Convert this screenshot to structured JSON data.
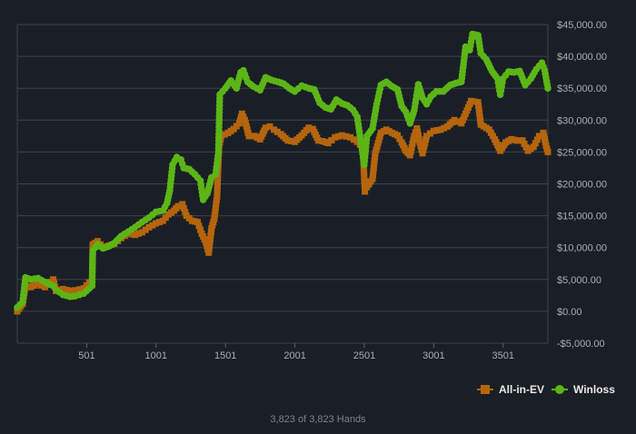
{
  "chart_data": {
    "type": "line",
    "xlim": [
      1,
      3823
    ],
    "ylim": [
      -5000,
      45000
    ],
    "x_ticks": [
      501,
      1001,
      1501,
      2001,
      2501,
      3001,
      3501
    ],
    "x_tick_labels": [
      "501",
      "1001",
      "1501",
      "2001",
      "2501",
      "3001",
      "3501"
    ],
    "y_ticks": [
      -5000,
      0,
      5000,
      10000,
      15000,
      20000,
      25000,
      30000,
      35000,
      40000,
      45000
    ],
    "y_tick_labels": [
      "-$5,000.00",
      "$0.00",
      "$5,000.00",
      "$10,000.00",
      "$15,000.00",
      "$20,000.00",
      "$25,000.00",
      "$30,000.00",
      "$35,000.00",
      "$40,000.00",
      "$45,000.00"
    ],
    "grid": true,
    "legend_position": "bottom-right",
    "series": [
      {
        "name": "All-in-EV",
        "color": "#b5650d",
        "marker": "square",
        "points": [
          [
            1,
            0
          ],
          [
            40,
            1200
          ],
          [
            60,
            4000
          ],
          [
            100,
            3800
          ],
          [
            150,
            4300
          ],
          [
            200,
            3800
          ],
          [
            260,
            5000
          ],
          [
            280,
            3200
          ],
          [
            330,
            3500
          ],
          [
            380,
            3200
          ],
          [
            420,
            3300
          ],
          [
            480,
            3600
          ],
          [
            540,
            5000
          ],
          [
            545,
            10500
          ],
          [
            580,
            11000
          ],
          [
            620,
            10000
          ],
          [
            660,
            10300
          ],
          [
            700,
            10600
          ],
          [
            750,
            11500
          ],
          [
            800,
            12200
          ],
          [
            850,
            12000
          ],
          [
            900,
            12400
          ],
          [
            950,
            13200
          ],
          [
            1000,
            13800
          ],
          [
            1050,
            14200
          ],
          [
            1090,
            15200
          ],
          [
            1130,
            15800
          ],
          [
            1160,
            16500
          ],
          [
            1190,
            16800
          ],
          [
            1220,
            15000
          ],
          [
            1260,
            14200
          ],
          [
            1300,
            14000
          ],
          [
            1330,
            12200
          ],
          [
            1360,
            10800
          ],
          [
            1380,
            9200
          ],
          [
            1400,
            13000
          ],
          [
            1420,
            14500
          ],
          [
            1440,
            18000
          ],
          [
            1455,
            26000
          ],
          [
            1470,
            27500
          ],
          [
            1520,
            28000
          ],
          [
            1560,
            28600
          ],
          [
            1600,
            29500
          ],
          [
            1620,
            31000
          ],
          [
            1640,
            30000
          ],
          [
            1670,
            27500
          ],
          [
            1710,
            27500
          ],
          [
            1750,
            27000
          ],
          [
            1790,
            28800
          ],
          [
            1820,
            29000
          ],
          [
            1850,
            28500
          ],
          [
            1900,
            27800
          ],
          [
            1950,
            26800
          ],
          [
            2000,
            26600
          ],
          [
            2050,
            27600
          ],
          [
            2100,
            28800
          ],
          [
            2130,
            28600
          ],
          [
            2170,
            26800
          ],
          [
            2200,
            26700
          ],
          [
            2240,
            26400
          ],
          [
            2290,
            27300
          ],
          [
            2340,
            27600
          ],
          [
            2400,
            27300
          ],
          [
            2450,
            26600
          ],
          [
            2490,
            25700
          ],
          [
            2505,
            18800
          ],
          [
            2520,
            19500
          ],
          [
            2560,
            20800
          ],
          [
            2580,
            24800
          ],
          [
            2620,
            28000
          ],
          [
            2660,
            28500
          ],
          [
            2700,
            28000
          ],
          [
            2740,
            27600
          ],
          [
            2770,
            26500
          ],
          [
            2800,
            25200
          ],
          [
            2830,
            24500
          ],
          [
            2860,
            27500
          ],
          [
            2880,
            28700
          ],
          [
            2900,
            26500
          ],
          [
            2920,
            24800
          ],
          [
            2950,
            27500
          ],
          [
            3000,
            28300
          ],
          [
            3050,
            28500
          ],
          [
            3100,
            29000
          ],
          [
            3150,
            30000
          ],
          [
            3200,
            29500
          ],
          [
            3240,
            31500
          ],
          [
            3270,
            33000
          ],
          [
            3320,
            32800
          ],
          [
            3340,
            29300
          ],
          [
            3400,
            28500
          ],
          [
            3440,
            27000
          ],
          [
            3480,
            25200
          ],
          [
            3520,
            26500
          ],
          [
            3560,
            27000
          ],
          [
            3600,
            26800
          ],
          [
            3640,
            26800
          ],
          [
            3680,
            25200
          ],
          [
            3720,
            25800
          ],
          [
            3760,
            27500
          ],
          [
            3790,
            28000
          ],
          [
            3810,
            26000
          ],
          [
            3823,
            25000
          ]
        ]
      },
      {
        "name": "Winloss",
        "color": "#5cb516",
        "marker": "circle",
        "points": [
          [
            1,
            600
          ],
          [
            40,
            1500
          ],
          [
            60,
            5300
          ],
          [
            100,
            5000
          ],
          [
            150,
            5200
          ],
          [
            200,
            4600
          ],
          [
            260,
            4000
          ],
          [
            280,
            3400
          ],
          [
            330,
            2600
          ],
          [
            380,
            2300
          ],
          [
            420,
            2400
          ],
          [
            480,
            2800
          ],
          [
            540,
            4000
          ],
          [
            545,
            9500
          ],
          [
            580,
            10500
          ],
          [
            620,
            9900
          ],
          [
            660,
            10200
          ],
          [
            700,
            10700
          ],
          [
            750,
            11800
          ],
          [
            800,
            12500
          ],
          [
            850,
            13200
          ],
          [
            900,
            14000
          ],
          [
            950,
            14700
          ],
          [
            1000,
            15600
          ],
          [
            1050,
            15800
          ],
          [
            1080,
            17000
          ],
          [
            1100,
            19000
          ],
          [
            1120,
            23000
          ],
          [
            1150,
            24200
          ],
          [
            1180,
            23800
          ],
          [
            1200,
            22500
          ],
          [
            1240,
            22300
          ],
          [
            1280,
            21500
          ],
          [
            1320,
            20500
          ],
          [
            1340,
            17500
          ],
          [
            1370,
            18500
          ],
          [
            1400,
            21000
          ],
          [
            1430,
            21500
          ],
          [
            1450,
            25000
          ],
          [
            1460,
            34000
          ],
          [
            1500,
            35000
          ],
          [
            1540,
            36200
          ],
          [
            1580,
            35000
          ],
          [
            1610,
            37500
          ],
          [
            1630,
            37800
          ],
          [
            1660,
            36000
          ],
          [
            1700,
            35300
          ],
          [
            1750,
            34700
          ],
          [
            1790,
            36700
          ],
          [
            1830,
            36300
          ],
          [
            1880,
            36000
          ],
          [
            1920,
            35700
          ],
          [
            1960,
            35000
          ],
          [
            2000,
            34500
          ],
          [
            2050,
            35400
          ],
          [
            2100,
            35000
          ],
          [
            2140,
            34800
          ],
          [
            2180,
            32700
          ],
          [
            2220,
            32000
          ],
          [
            2260,
            31700
          ],
          [
            2300,
            33200
          ],
          [
            2340,
            32600
          ],
          [
            2380,
            32300
          ],
          [
            2420,
            31600
          ],
          [
            2450,
            30500
          ],
          [
            2500,
            23000
          ],
          [
            2520,
            27500
          ],
          [
            2560,
            28700
          ],
          [
            2590,
            32500
          ],
          [
            2620,
            35500
          ],
          [
            2660,
            36000
          ],
          [
            2700,
            35300
          ],
          [
            2740,
            34800
          ],
          [
            2770,
            32200
          ],
          [
            2800,
            31300
          ],
          [
            2830,
            29500
          ],
          [
            2860,
            31500
          ],
          [
            2890,
            35600
          ],
          [
            2920,
            33500
          ],
          [
            2950,
            32500
          ],
          [
            2980,
            33700
          ],
          [
            3020,
            34500
          ],
          [
            3070,
            34500
          ],
          [
            3120,
            35500
          ],
          [
            3160,
            35800
          ],
          [
            3200,
            36000
          ],
          [
            3230,
            41500
          ],
          [
            3260,
            41000
          ],
          [
            3280,
            43500
          ],
          [
            3320,
            43300
          ],
          [
            3340,
            40500
          ],
          [
            3380,
            39500
          ],
          [
            3420,
            37700
          ],
          [
            3460,
            36500
          ],
          [
            3480,
            34000
          ],
          [
            3500,
            36500
          ],
          [
            3540,
            37600
          ],
          [
            3580,
            37500
          ],
          [
            3620,
            37700
          ],
          [
            3660,
            35500
          ],
          [
            3700,
            36500
          ],
          [
            3740,
            38000
          ],
          [
            3780,
            39000
          ],
          [
            3800,
            37800
          ],
          [
            3823,
            35000
          ]
        ]
      }
    ]
  },
  "footer": "3,823 of 3,823 Hands"
}
